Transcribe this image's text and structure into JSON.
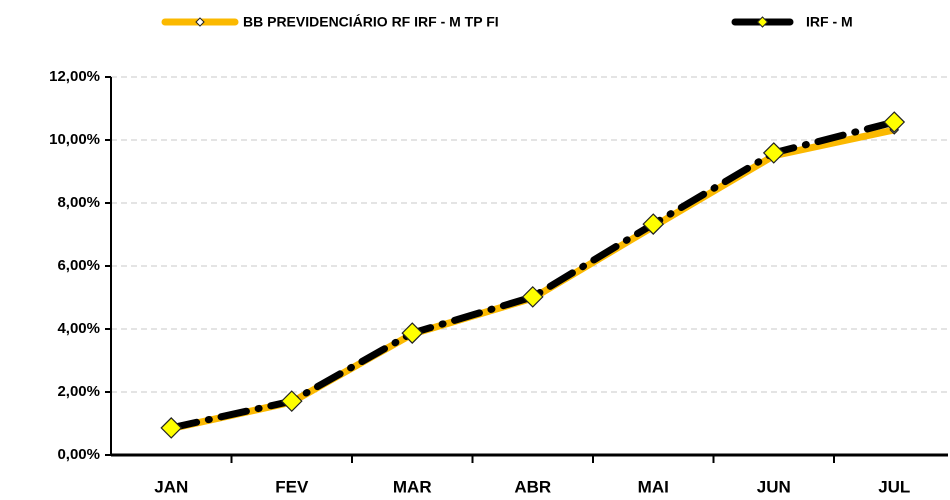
{
  "chart_data": {
    "type": "line",
    "categories": [
      "JAN",
      "FEV",
      "MAR",
      "ABR",
      "MAI",
      "JUN",
      "JUL"
    ],
    "series": [
      {
        "name": "BB PREVIDENCIÁRIO RF IRF - M TP FI",
        "color": "#fbb900",
        "values": [
          0.84,
          1.68,
          3.84,
          4.98,
          7.25,
          9.5,
          10.32
        ]
      },
      {
        "name": "IRF - M",
        "color": "#000000",
        "marker_color": "#ffff00",
        "values": [
          0.86,
          1.71,
          3.87,
          5.02,
          7.33,
          9.59,
          10.57
        ]
      }
    ],
    "ylim": [
      0,
      12
    ],
    "yticks": [
      {
        "value": 0,
        "label": "0,00%"
      },
      {
        "value": 2,
        "label": "2,00%"
      },
      {
        "value": 4,
        "label": "4,00%"
      },
      {
        "value": 6,
        "label": "6,00%"
      },
      {
        "value": 8,
        "label": "8,00%"
      },
      {
        "value": 10,
        "label": "10,00%"
      },
      {
        "value": 12,
        "label": "12,00%"
      }
    ],
    "grid": true,
    "legend": "top"
  }
}
